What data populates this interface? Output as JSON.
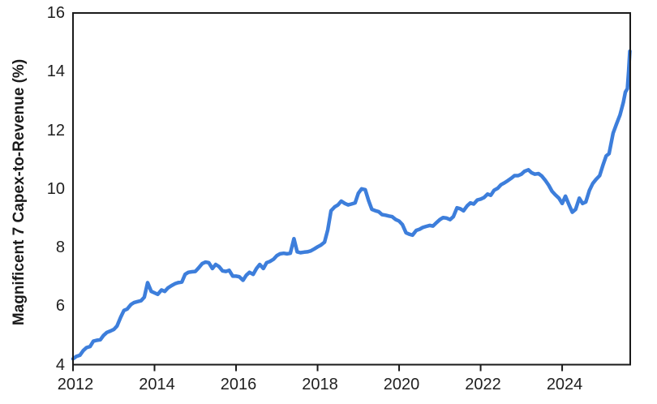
{
  "chart_data": {
    "type": "line",
    "title": "",
    "xlabel": "",
    "ylabel": "Magnificent 7 Capex-to-Revenue (%)",
    "x_ticks": [
      2012,
      2014,
      2016,
      2018,
      2020,
      2022,
      2024
    ],
    "y_ticks": [
      4,
      6,
      8,
      10,
      12,
      14,
      16
    ],
    "xlim": [
      2012,
      2025.67
    ],
    "ylim": [
      4,
      16
    ],
    "grid": false,
    "legend_position": "none",
    "frame_color": "#1a1a1a",
    "line_color": "#3d7edb",
    "series": [
      {
        "name": "Magnificent 7 Capex-to-Revenue (%)",
        "points": [
          [
            2012.0,
            4.2
          ],
          [
            2012.08,
            4.28
          ],
          [
            2012.17,
            4.32
          ],
          [
            2012.25,
            4.48
          ],
          [
            2012.33,
            4.58
          ],
          [
            2012.42,
            4.62
          ],
          [
            2012.5,
            4.8
          ],
          [
            2012.58,
            4.83
          ],
          [
            2012.67,
            4.85
          ],
          [
            2012.75,
            5.0
          ],
          [
            2012.83,
            5.1
          ],
          [
            2012.92,
            5.15
          ],
          [
            2013.0,
            5.2
          ],
          [
            2013.08,
            5.32
          ],
          [
            2013.17,
            5.62
          ],
          [
            2013.25,
            5.85
          ],
          [
            2013.33,
            5.9
          ],
          [
            2013.42,
            6.05
          ],
          [
            2013.5,
            6.12
          ],
          [
            2013.58,
            6.15
          ],
          [
            2013.67,
            6.18
          ],
          [
            2013.75,
            6.3
          ],
          [
            2013.83,
            6.8
          ],
          [
            2013.92,
            6.5
          ],
          [
            2014.0,
            6.45
          ],
          [
            2014.08,
            6.4
          ],
          [
            2014.17,
            6.55
          ],
          [
            2014.25,
            6.5
          ],
          [
            2014.33,
            6.62
          ],
          [
            2014.42,
            6.7
          ],
          [
            2014.5,
            6.76
          ],
          [
            2014.58,
            6.8
          ],
          [
            2014.67,
            6.82
          ],
          [
            2014.75,
            7.08
          ],
          [
            2014.83,
            7.15
          ],
          [
            2014.92,
            7.17
          ],
          [
            2015.0,
            7.18
          ],
          [
            2015.08,
            7.3
          ],
          [
            2015.17,
            7.45
          ],
          [
            2015.25,
            7.5
          ],
          [
            2015.33,
            7.48
          ],
          [
            2015.42,
            7.28
          ],
          [
            2015.5,
            7.42
          ],
          [
            2015.58,
            7.35
          ],
          [
            2015.67,
            7.2
          ],
          [
            2015.75,
            7.18
          ],
          [
            2015.83,
            7.22
          ],
          [
            2015.92,
            7.02
          ],
          [
            2016.0,
            7.02
          ],
          [
            2016.08,
            7.0
          ],
          [
            2016.17,
            6.88
          ],
          [
            2016.25,
            7.05
          ],
          [
            2016.33,
            7.15
          ],
          [
            2016.42,
            7.08
          ],
          [
            2016.5,
            7.28
          ],
          [
            2016.58,
            7.42
          ],
          [
            2016.67,
            7.28
          ],
          [
            2016.75,
            7.48
          ],
          [
            2016.83,
            7.52
          ],
          [
            2016.92,
            7.6
          ],
          [
            2017.0,
            7.72
          ],
          [
            2017.08,
            7.78
          ],
          [
            2017.17,
            7.8
          ],
          [
            2017.25,
            7.78
          ],
          [
            2017.33,
            7.8
          ],
          [
            2017.42,
            8.3
          ],
          [
            2017.5,
            7.85
          ],
          [
            2017.58,
            7.82
          ],
          [
            2017.67,
            7.84
          ],
          [
            2017.75,
            7.85
          ],
          [
            2017.83,
            7.88
          ],
          [
            2017.92,
            7.95
          ],
          [
            2018.0,
            8.02
          ],
          [
            2018.08,
            8.08
          ],
          [
            2018.17,
            8.18
          ],
          [
            2018.25,
            8.6
          ],
          [
            2018.33,
            9.25
          ],
          [
            2018.42,
            9.38
          ],
          [
            2018.5,
            9.45
          ],
          [
            2018.58,
            9.58
          ],
          [
            2018.67,
            9.5
          ],
          [
            2018.75,
            9.45
          ],
          [
            2018.83,
            9.48
          ],
          [
            2018.92,
            9.52
          ],
          [
            2019.0,
            9.85
          ],
          [
            2019.08,
            10.0
          ],
          [
            2019.17,
            9.97
          ],
          [
            2019.25,
            9.6
          ],
          [
            2019.33,
            9.3
          ],
          [
            2019.42,
            9.25
          ],
          [
            2019.5,
            9.22
          ],
          [
            2019.58,
            9.12
          ],
          [
            2019.67,
            9.1
          ],
          [
            2019.75,
            9.07
          ],
          [
            2019.83,
            9.05
          ],
          [
            2019.92,
            8.95
          ],
          [
            2020.0,
            8.9
          ],
          [
            2020.08,
            8.78
          ],
          [
            2020.17,
            8.5
          ],
          [
            2020.25,
            8.45
          ],
          [
            2020.33,
            8.42
          ],
          [
            2020.42,
            8.58
          ],
          [
            2020.5,
            8.62
          ],
          [
            2020.58,
            8.68
          ],
          [
            2020.67,
            8.72
          ],
          [
            2020.75,
            8.75
          ],
          [
            2020.83,
            8.73
          ],
          [
            2020.92,
            8.85
          ],
          [
            2021.0,
            8.95
          ],
          [
            2021.08,
            9.02
          ],
          [
            2021.17,
            9.0
          ],
          [
            2021.25,
            8.95
          ],
          [
            2021.33,
            9.05
          ],
          [
            2021.42,
            9.35
          ],
          [
            2021.5,
            9.32
          ],
          [
            2021.58,
            9.25
          ],
          [
            2021.67,
            9.42
          ],
          [
            2021.75,
            9.52
          ],
          [
            2021.83,
            9.48
          ],
          [
            2021.92,
            9.62
          ],
          [
            2022.0,
            9.65
          ],
          [
            2022.08,
            9.7
          ],
          [
            2022.17,
            9.82
          ],
          [
            2022.25,
            9.78
          ],
          [
            2022.33,
            9.95
          ],
          [
            2022.42,
            10.02
          ],
          [
            2022.5,
            10.14
          ],
          [
            2022.58,
            10.2
          ],
          [
            2022.67,
            10.28
          ],
          [
            2022.75,
            10.36
          ],
          [
            2022.83,
            10.45
          ],
          [
            2022.92,
            10.45
          ],
          [
            2023.0,
            10.5
          ],
          [
            2023.08,
            10.6
          ],
          [
            2023.17,
            10.65
          ],
          [
            2023.25,
            10.55
          ],
          [
            2023.33,
            10.5
          ],
          [
            2023.42,
            10.52
          ],
          [
            2023.5,
            10.44
          ],
          [
            2023.58,
            10.3
          ],
          [
            2023.67,
            10.12
          ],
          [
            2023.75,
            9.92
          ],
          [
            2023.83,
            9.8
          ],
          [
            2023.92,
            9.68
          ],
          [
            2024.0,
            9.5
          ],
          [
            2024.08,
            9.75
          ],
          [
            2024.17,
            9.45
          ],
          [
            2024.25,
            9.2
          ],
          [
            2024.33,
            9.3
          ],
          [
            2024.42,
            9.68
          ],
          [
            2024.5,
            9.5
          ],
          [
            2024.58,
            9.55
          ],
          [
            2024.67,
            9.95
          ],
          [
            2024.75,
            10.18
          ],
          [
            2024.83,
            10.32
          ],
          [
            2024.92,
            10.45
          ],
          [
            2025.0,
            10.8
          ],
          [
            2025.08,
            11.12
          ],
          [
            2025.15,
            11.2
          ],
          [
            2025.25,
            11.9
          ],
          [
            2025.33,
            12.2
          ],
          [
            2025.42,
            12.52
          ],
          [
            2025.5,
            12.95
          ],
          [
            2025.55,
            13.3
          ],
          [
            2025.6,
            13.42
          ],
          [
            2025.63,
            14.0
          ],
          [
            2025.66,
            14.7
          ]
        ]
      }
    ]
  }
}
